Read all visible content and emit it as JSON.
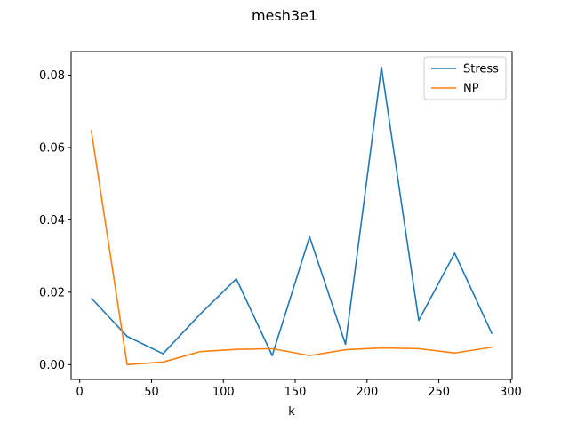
{
  "chart_data": {
    "type": "line",
    "title": "mesh3e1",
    "xlabel": "k",
    "ylabel": "",
    "xlim": [
      -6,
      301
    ],
    "ylim": [
      -0.0041,
      0.0865
    ],
    "xticks": [
      0,
      50,
      100,
      150,
      200,
      250,
      300
    ],
    "xtick_labels": [
      "0",
      "50",
      "100",
      "150",
      "200",
      "250",
      "300"
    ],
    "yticks": [
      0.0,
      0.02,
      0.04,
      0.06,
      0.08
    ],
    "ytick_labels": [
      "0.00",
      "0.02",
      "0.04",
      "0.06",
      "0.08"
    ],
    "grid": false,
    "legend_position": "top-right",
    "x": [
      8,
      33,
      58,
      84,
      109,
      134,
      160,
      185,
      210,
      236,
      261,
      287
    ],
    "series": [
      {
        "name": "Stress",
        "color": "#1f77b4",
        "values": [
          0.0184,
          0.0078,
          0.003,
          0.014,
          0.0237,
          0.0025,
          0.0353,
          0.0056,
          0.0822,
          0.0122,
          0.0308,
          0.0085
        ]
      },
      {
        "name": "NP",
        "color": "#ff7f0e",
        "values": [
          0.0648,
          0.0,
          0.0007,
          0.0036,
          0.0042,
          0.0044,
          0.0025,
          0.0041,
          0.0046,
          0.0044,
          0.0032,
          0.0048
        ]
      }
    ]
  }
}
